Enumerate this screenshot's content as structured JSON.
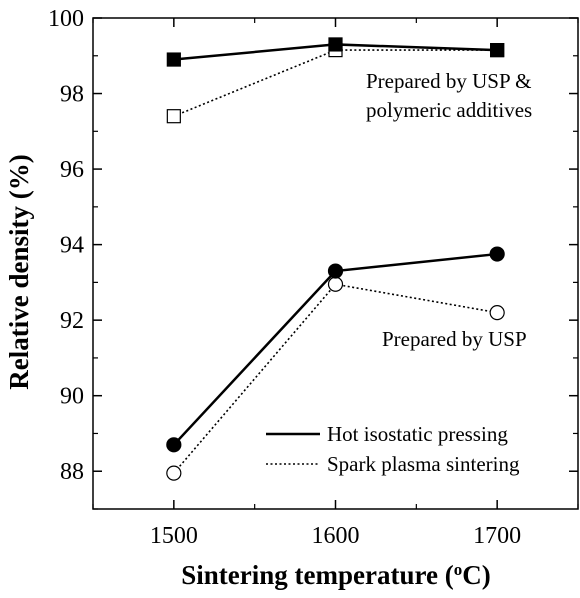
{
  "chart_data": {
    "type": "line",
    "xlabel": "Sintering temperature",
    "xlabel_unit": "(°C)",
    "ylabel": "Relative density (%)",
    "x": [
      1500,
      1600,
      1700
    ],
    "xticks": [
      "1500",
      "1600",
      "1700"
    ],
    "xlim": [
      1450,
      1750
    ],
    "ylim": [
      87,
      100
    ],
    "yticks": [
      "88",
      "90",
      "92",
      "94",
      "96",
      "98",
      "100"
    ],
    "grid": false,
    "legend_position": "bottom-right",
    "series": [
      {
        "name": "Hot isostatic pressing",
        "group": "Prepared by USP & polymeric additives",
        "values": [
          98.9,
          99.3,
          99.15
        ],
        "line": "solid",
        "marker": "filled-square"
      },
      {
        "name": "Spark plasma sintering",
        "group": "Prepared by USP & polymeric additives",
        "values": [
          97.4,
          99.15,
          99.15
        ],
        "line": "dotted",
        "marker": "open-square"
      },
      {
        "name": "Hot isostatic pressing",
        "group": "Prepared by USP",
        "values": [
          88.7,
          93.3,
          93.75
        ],
        "line": "solid",
        "marker": "filled-circle"
      },
      {
        "name": "Spark plasma sintering",
        "group": "Prepared by USP",
        "values": [
          87.95,
          92.95,
          92.2
        ],
        "line": "dotted",
        "marker": "open-circle"
      }
    ],
    "annotations": [
      {
        "line1": "Prepared by USP &",
        "line2": "polymeric additives"
      },
      {
        "line1": "Prepared by USP"
      }
    ],
    "legend": [
      {
        "label": "Hot isostatic pressing",
        "line": "solid"
      },
      {
        "label": "Spark plasma sintering",
        "line": "dotted"
      }
    ]
  }
}
